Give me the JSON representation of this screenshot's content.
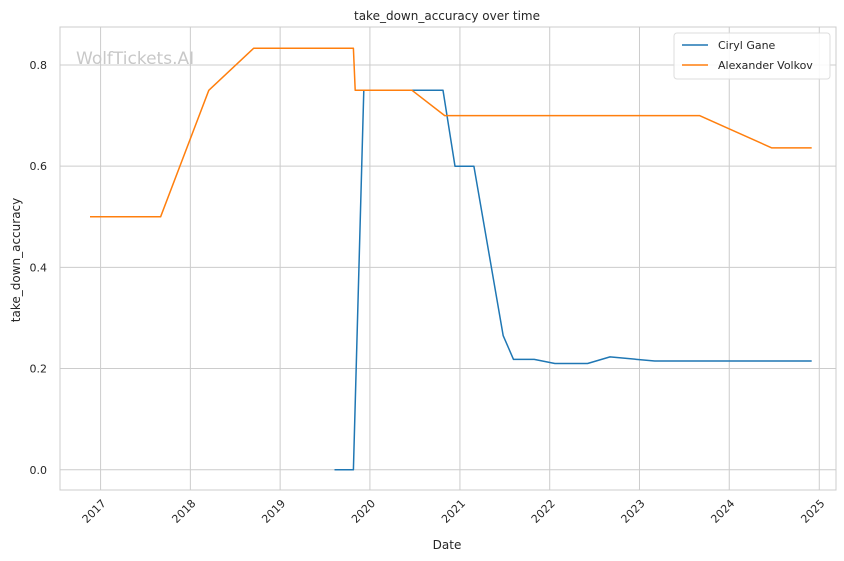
{
  "chart_data": {
    "type": "line",
    "title": "take_down_accuracy over time",
    "xlabel": "Date",
    "ylabel": "take_down_accuracy",
    "watermark": "WolfTickets.AI",
    "xlim": [
      "2016-07-20",
      "2025-03-10"
    ],
    "ylim": [
      -0.04,
      0.875
    ],
    "x_ticks": [
      {
        "label": "2017",
        "date": "2017-01-01"
      },
      {
        "label": "2018",
        "date": "2018-01-01"
      },
      {
        "label": "2019",
        "date": "2019-01-01"
      },
      {
        "label": "2020",
        "date": "2020-01-01"
      },
      {
        "label": "2021",
        "date": "2021-01-01"
      },
      {
        "label": "2022",
        "date": "2022-01-01"
      },
      {
        "label": "2023",
        "date": "2023-01-01"
      },
      {
        "label": "2024",
        "date": "2024-01-01"
      },
      {
        "label": "2025",
        "date": "2025-01-01"
      }
    ],
    "y_ticks": [
      {
        "label": "0.0",
        "value": 0.0
      },
      {
        "label": "0.2",
        "value": 0.2
      },
      {
        "label": "0.4",
        "value": 0.4
      },
      {
        "label": "0.6",
        "value": 0.6
      },
      {
        "label": "0.8",
        "value": 0.8
      }
    ],
    "grid": true,
    "legend_position": "top-right",
    "series": [
      {
        "name": "Ciryl Gane",
        "color": "#1f77b4",
        "points": [
          {
            "date": "2019-08-10",
            "value": 0.0
          },
          {
            "date": "2019-10-26",
            "value": 0.0
          },
          {
            "date": "2019-12-07",
            "value": 0.75
          },
          {
            "date": "2020-06-27",
            "value": 0.75
          },
          {
            "date": "2020-10-24",
            "value": 0.75
          },
          {
            "date": "2020-12-12",
            "value": 0.6
          },
          {
            "date": "2021-02-27",
            "value": 0.6
          },
          {
            "date": "2021-06-26",
            "value": 0.265
          },
          {
            "date": "2021-08-07",
            "value": 0.218
          },
          {
            "date": "2021-10-30",
            "value": 0.218
          },
          {
            "date": "2022-01-22",
            "value": 0.21
          },
          {
            "date": "2022-06-04",
            "value": 0.21
          },
          {
            "date": "2022-09-03",
            "value": 0.223
          },
          {
            "date": "2023-03-04",
            "value": 0.215
          },
          {
            "date": "2024-06-01",
            "value": 0.215
          },
          {
            "date": "2024-12-01",
            "value": 0.215
          }
        ]
      },
      {
        "name": "Alexander Volkov",
        "color": "#ff7f0e",
        "points": [
          {
            "date": "2016-11-19",
            "value": 0.5
          },
          {
            "date": "2017-09-02",
            "value": 0.5
          },
          {
            "date": "2018-03-17",
            "value": 0.75
          },
          {
            "date": "2018-09-15",
            "value": 0.833
          },
          {
            "date": "2019-10-26",
            "value": 0.833
          },
          {
            "date": "2019-11-02",
            "value": 0.75
          },
          {
            "date": "2020-06-20",
            "value": 0.75
          },
          {
            "date": "2020-10-31",
            "value": 0.7
          },
          {
            "date": "2023-09-02",
            "value": 0.7
          },
          {
            "date": "2024-06-22",
            "value": 0.636
          },
          {
            "date": "2024-12-01",
            "value": 0.636
          }
        ]
      }
    ]
  }
}
